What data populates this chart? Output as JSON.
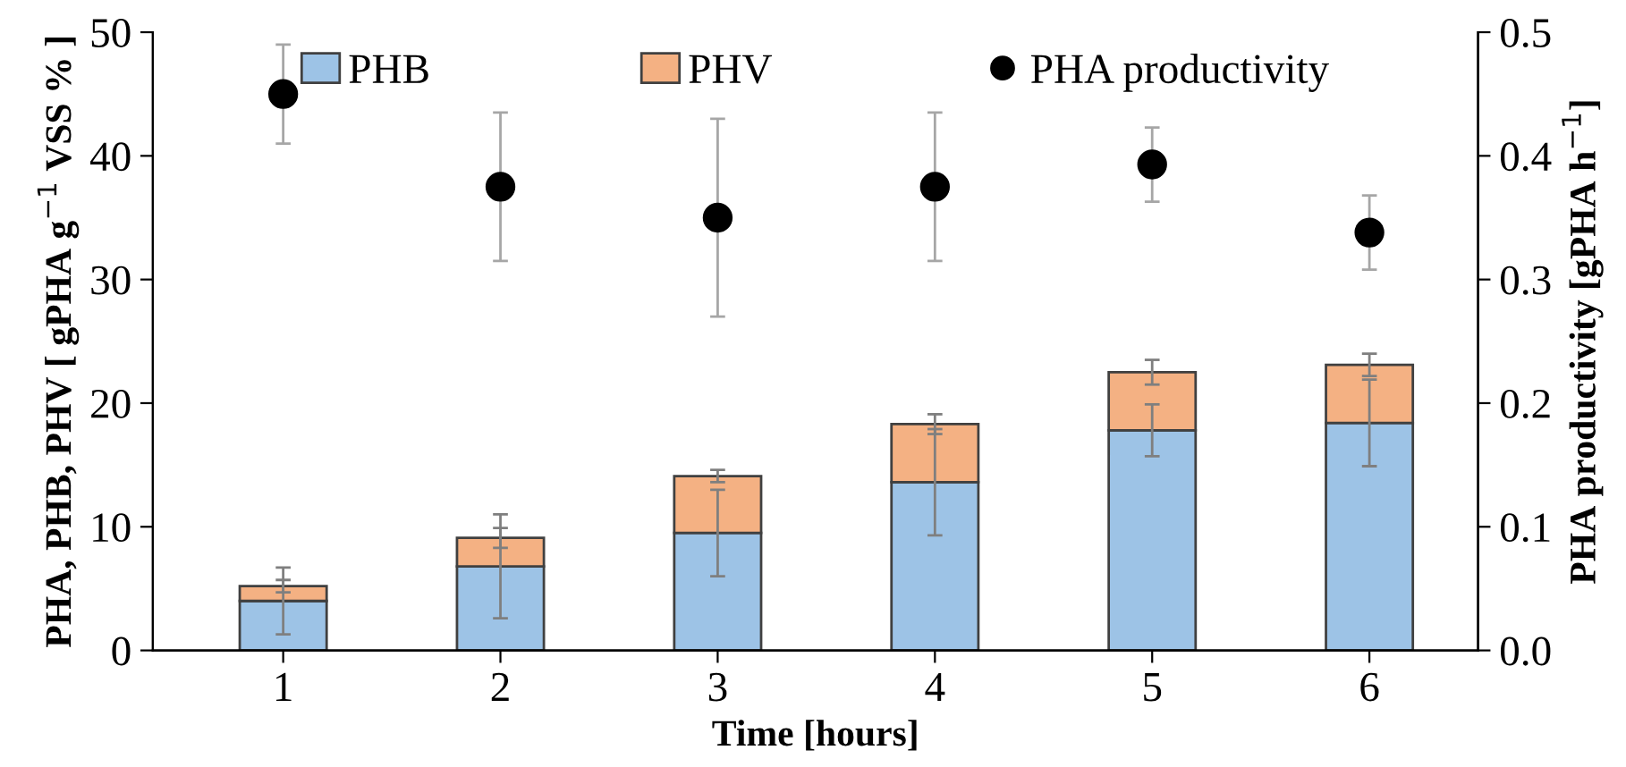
{
  "chart_data": {
    "type": "bar",
    "stacked": true,
    "xlabel": "Time [hours]",
    "ylabel": "PHA, PHB, PHV [ gPHA g$^{−1}$ VSS % ]",
    "y2label": "PHA productivity [gPHA h$^{−1}$]",
    "categories": [
      "1",
      "2",
      "3",
      "4",
      "5",
      "6"
    ],
    "series": [
      {
        "name": "PHB",
        "color": "#9dc3e6",
        "values": [
          4.0,
          6.8,
          9.5,
          13.6,
          17.8,
          18.4
        ],
        "errors": [
          2.7,
          4.2,
          3.5,
          4.3,
          2.1,
          3.5
        ]
      },
      {
        "name": "PHV",
        "color": "#f4b183",
        "values": [
          1.2,
          2.3,
          4.6,
          4.7,
          4.7,
          4.7
        ],
        "errors": [
          0.5,
          0.8,
          0.5,
          0.8,
          1.0,
          0.9
        ]
      },
      {
        "name": "PHA productivity",
        "type": "scatter",
        "axis": "y2",
        "color": "#000000",
        "marker": "circle",
        "values": [
          0.45,
          0.375,
          0.35,
          0.375,
          0.393,
          0.338
        ],
        "errors": [
          0.04,
          0.06,
          0.08,
          0.06,
          0.03,
          0.03
        ]
      }
    ],
    "ylim": [
      0,
      50
    ],
    "yticks": [
      0,
      10,
      20,
      30,
      40,
      50
    ],
    "y2lim": [
      0,
      0.5
    ],
    "y2ticks": [
      {
        "value": 0,
        "label": "0.0"
      },
      {
        "value": 0.1,
        "label": "0.1"
      },
      {
        "value": 0.2,
        "label": "0.2"
      },
      {
        "value": 0.3,
        "label": "0.3"
      },
      {
        "value": 0.4,
        "label": "0.4"
      },
      {
        "value": 0.5,
        "label": "0.5"
      }
    ],
    "legend": "top",
    "grid": false
  }
}
